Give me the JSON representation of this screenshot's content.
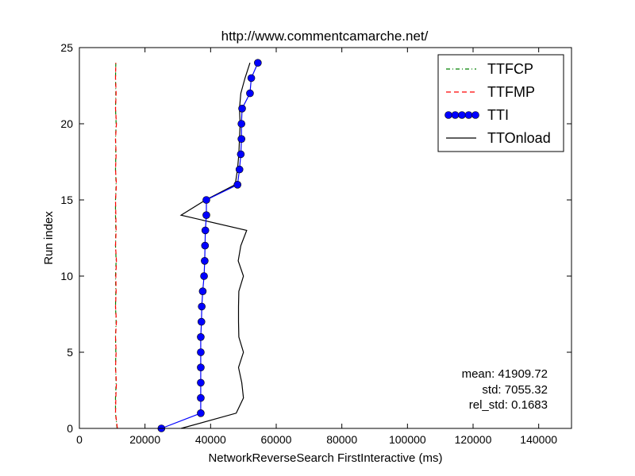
{
  "chart_data": {
    "type": "line",
    "title": "http://www.commentcamarche.net/",
    "xlabel": "NetworkReverseSearch FirstInteractive (ms)",
    "ylabel": "Run index",
    "xlim": [
      0,
      150000
    ],
    "ylim": [
      0,
      25
    ],
    "xticks": [
      0,
      20000,
      40000,
      60000,
      80000,
      100000,
      120000,
      140000
    ],
    "yticks": [
      0,
      5,
      10,
      15,
      20,
      25
    ],
    "grid": false,
    "legend_position": "top-right",
    "series": [
      {
        "name": "TTFCP",
        "color": "#008000",
        "style": "dash-dot",
        "points": [
          [
            11500,
            0
          ],
          [
            11000,
            1
          ],
          [
            11000,
            2
          ],
          [
            11200,
            3
          ],
          [
            11000,
            4
          ],
          [
            11100,
            5
          ],
          [
            11000,
            6
          ],
          [
            11200,
            7
          ],
          [
            11000,
            8
          ],
          [
            11100,
            9
          ],
          [
            11000,
            10
          ],
          [
            11200,
            11
          ],
          [
            11000,
            12
          ],
          [
            11100,
            13
          ],
          [
            11000,
            14
          ],
          [
            11000,
            15
          ],
          [
            11200,
            16
          ],
          [
            11000,
            17
          ],
          [
            11100,
            18
          ],
          [
            11000,
            19
          ],
          [
            11200,
            20
          ],
          [
            11000,
            21
          ],
          [
            11100,
            22
          ],
          [
            11000,
            23
          ],
          [
            11100,
            24
          ]
        ]
      },
      {
        "name": "TTFMP",
        "color": "#ff0000",
        "style": "dashed",
        "points": [
          [
            11600,
            0
          ],
          [
            11000,
            1
          ],
          [
            11100,
            2
          ],
          [
            11300,
            3
          ],
          [
            11000,
            4
          ],
          [
            11200,
            5
          ],
          [
            11000,
            6
          ],
          [
            11300,
            7
          ],
          [
            11000,
            8
          ],
          [
            11200,
            9
          ],
          [
            11100,
            10
          ],
          [
            11300,
            11
          ],
          [
            11000,
            12
          ],
          [
            11200,
            13
          ],
          [
            11100,
            14
          ],
          [
            11000,
            15
          ],
          [
            11300,
            16
          ],
          [
            11000,
            17
          ],
          [
            11200,
            18
          ],
          [
            11000,
            19
          ],
          [
            11300,
            20
          ],
          [
            11000,
            21
          ],
          [
            11200,
            22
          ],
          [
            11000,
            23
          ],
          [
            11100,
            24
          ]
        ]
      },
      {
        "name": "TTI",
        "color": "#0000ff",
        "style": "solid-markers",
        "points": [
          [
            25000,
            0
          ],
          [
            37000,
            1
          ],
          [
            37000,
            2
          ],
          [
            37000,
            3
          ],
          [
            37000,
            4
          ],
          [
            37000,
            5
          ],
          [
            37000,
            6
          ],
          [
            37200,
            7
          ],
          [
            37300,
            8
          ],
          [
            37600,
            9
          ],
          [
            38000,
            10
          ],
          [
            38200,
            11
          ],
          [
            38300,
            12
          ],
          [
            38400,
            13
          ],
          [
            38700,
            14
          ],
          [
            38700,
            15
          ],
          [
            48200,
            16
          ],
          [
            48800,
            17
          ],
          [
            49200,
            18
          ],
          [
            49400,
            19
          ],
          [
            49400,
            20
          ],
          [
            49600,
            21
          ],
          [
            52000,
            22
          ],
          [
            52400,
            23
          ],
          [
            54400,
            24
          ]
        ]
      },
      {
        "name": "TTOnload",
        "color": "#000000",
        "style": "solid",
        "points": [
          [
            31000,
            0
          ],
          [
            47800,
            1
          ],
          [
            50000,
            2
          ],
          [
            49500,
            3
          ],
          [
            48500,
            4
          ],
          [
            50000,
            5
          ],
          [
            48600,
            6
          ],
          [
            48500,
            7
          ],
          [
            48500,
            8
          ],
          [
            48600,
            9
          ],
          [
            50000,
            10
          ],
          [
            48400,
            11
          ],
          [
            49200,
            12
          ],
          [
            51000,
            13
          ],
          [
            31000,
            14
          ],
          [
            38500,
            15
          ],
          [
            47500,
            16
          ],
          [
            48200,
            17
          ],
          [
            48600,
            18
          ],
          [
            48800,
            19
          ],
          [
            49000,
            20
          ],
          [
            48800,
            21
          ],
          [
            49200,
            22
          ],
          [
            50500,
            23
          ],
          [
            52000,
            24
          ]
        ]
      }
    ],
    "annotations": [
      "mean: 41909.72",
      "std: 7055.32",
      "rel_std: 0.1683"
    ]
  }
}
